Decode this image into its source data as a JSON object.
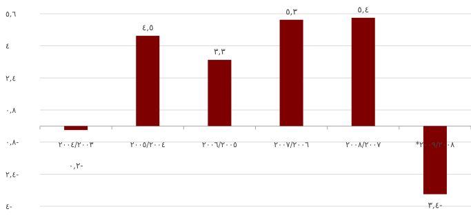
{
  "chart_data": {
    "type": "bar",
    "title": "",
    "xlabel": "",
    "ylabel": "",
    "categories": [
      "٢٠٠٤/٢٠٠٣",
      "٢٠٠٥/٢٠٠٤",
      "٢٠٠٦/٢٠٠٥",
      "٢٠٠٧/٢٠٠٦",
      "٢٠٠٨/٢٠٠٧",
      "*٢٠٠٩/٢٠٠٨"
    ],
    "values": [
      -0.2,
      4.5,
      3.3,
      5.3,
      5.4,
      -3.4
    ],
    "data_labels": [
      "٠,٢-",
      "٤,٥",
      "٣,٣",
      "٥,٣",
      "٥,٤",
      "٣,٤-"
    ],
    "yticks": [
      5.6,
      4,
      2.4,
      0.8,
      -0.8,
      -2.4,
      -4
    ],
    "ytick_labels": [
      "٥,٦",
      "٤",
      "٢,٤",
      "٠,٨",
      "٠,٨-",
      "٢,٤-",
      "٤-"
    ],
    "ylim": [
      -4,
      5.6
    ],
    "grid": true,
    "bar_color": "#7F0000",
    "grid_color": "#D9D9D9",
    "axis_color": "#A6A6A6",
    "text_color": "#444444"
  }
}
